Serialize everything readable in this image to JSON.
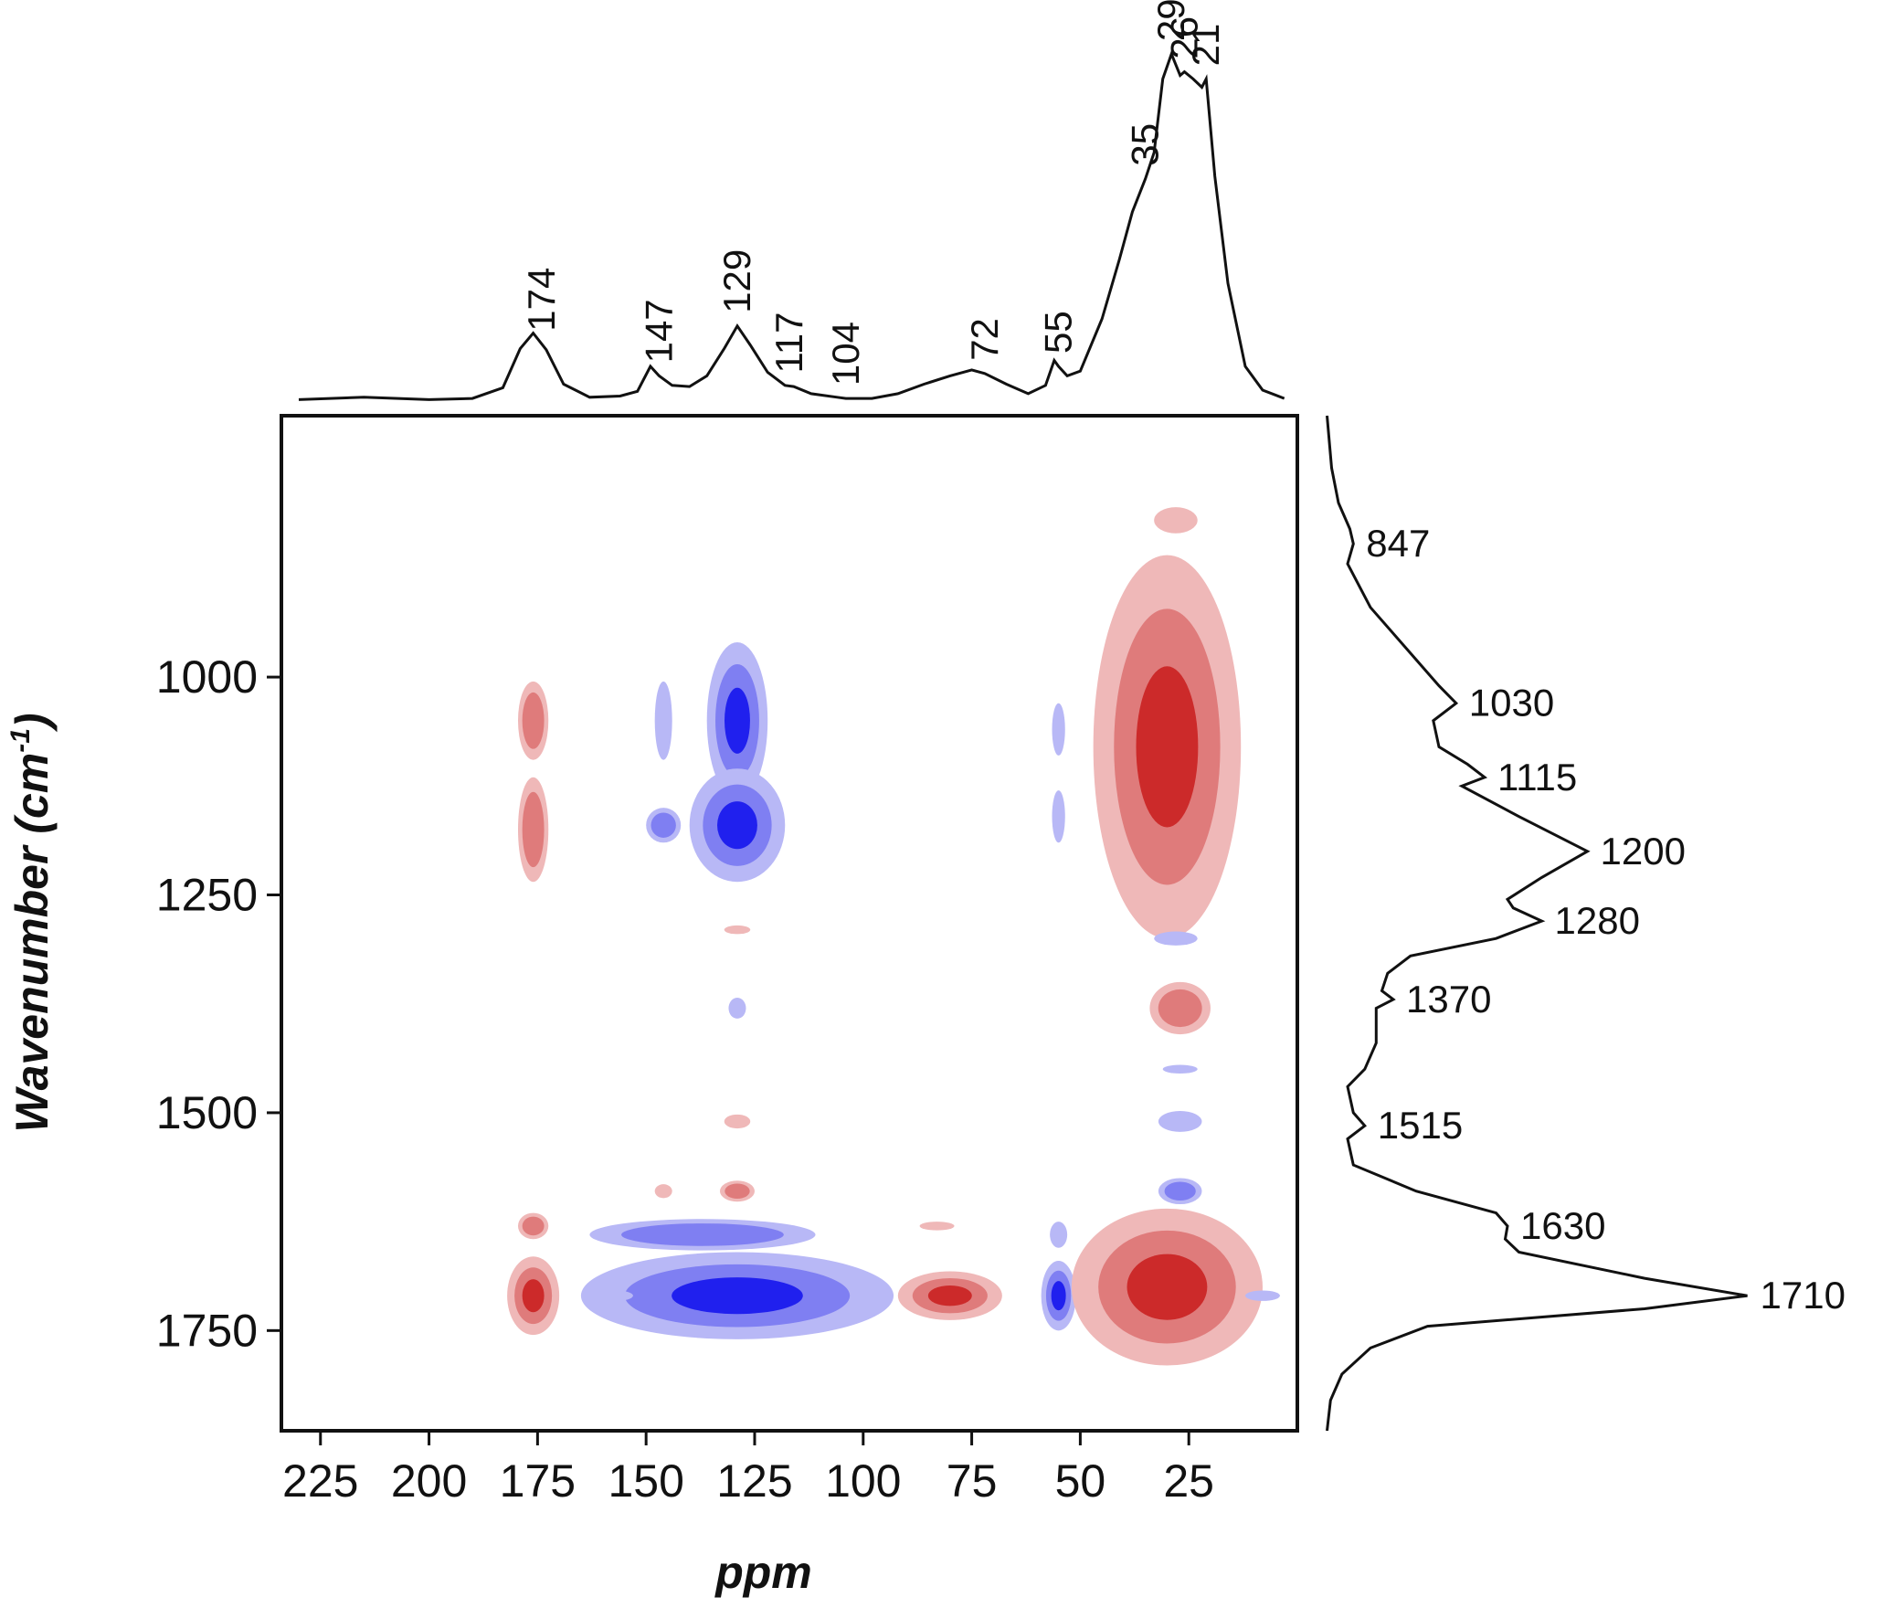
{
  "chart_data": {
    "type": "heatmap",
    "title": "",
    "xlabel": "ppm",
    "ylabel": "Wavenumber (cm",
    "ylabel_superscript": "-1",
    "ylabel_suffix": ")",
    "xlim": [
      234,
      0
    ],
    "ylim": [
      700,
      1865
    ],
    "x_ticks": [
      225,
      200,
      175,
      150,
      125,
      100,
      75,
      50,
      25
    ],
    "y_ticks": [
      1000,
      1250,
      1500,
      1750
    ],
    "x_reversed": true,
    "y_increases_downward": true,
    "colors": {
      "positive_strong": "#cc2a2a",
      "positive_medium": "#df7b7b",
      "positive_weak": "#efb8b8",
      "negative_strong": "#2020ee",
      "negative_medium": "#7f7ff2",
      "negative_weak": "#b8b8f6",
      "line": "#111111"
    },
    "top_spectrum": {
      "name": "13C NMR",
      "points": [
        [
          230,
          2
        ],
        [
          215,
          4
        ],
        [
          200,
          2
        ],
        [
          190,
          3
        ],
        [
          183,
          12
        ],
        [
          179,
          45
        ],
        [
          176,
          58
        ],
        [
          173,
          44
        ],
        [
          169,
          15
        ],
        [
          163,
          4
        ],
        [
          156,
          5
        ],
        [
          152,
          9
        ],
        [
          149,
          30
        ],
        [
          147,
          22
        ],
        [
          144,
          14
        ],
        [
          140,
          13
        ],
        [
          136,
          22
        ],
        [
          132,
          45
        ],
        [
          129,
          64
        ],
        [
          126,
          48
        ],
        [
          122,
          25
        ],
        [
          118,
          14
        ],
        [
          116,
          13
        ],
        [
          112,
          7
        ],
        [
          106,
          4
        ],
        [
          104,
          3
        ],
        [
          98,
          3
        ],
        [
          92,
          7
        ],
        [
          86,
          15
        ],
        [
          80,
          22
        ],
        [
          75,
          27
        ],
        [
          72,
          24
        ],
        [
          67,
          15
        ],
        [
          62,
          7
        ],
        [
          58,
          14
        ],
        [
          56,
          35
        ],
        [
          55,
          30
        ],
        [
          53,
          22
        ],
        [
          50,
          26
        ],
        [
          45,
          70
        ],
        [
          41,
          120
        ],
        [
          38,
          160
        ],
        [
          35,
          188
        ],
        [
          33,
          210
        ],
        [
          31,
          272
        ],
        [
          29,
          293
        ],
        [
          27,
          275
        ],
        [
          26,
          278
        ],
        [
          24,
          272
        ],
        [
          22,
          265
        ],
        [
          21,
          272
        ],
        [
          19,
          190
        ],
        [
          16,
          100
        ],
        [
          12,
          30
        ],
        [
          8,
          10
        ],
        [
          3,
          3
        ]
      ],
      "peak_labels": [
        {
          "x": 174,
          "label": "174"
        },
        {
          "x": 147,
          "label": "147"
        },
        {
          "x": 129,
          "label": "129"
        },
        {
          "x": 117,
          "label": "117"
        },
        {
          "x": 104,
          "label": "104"
        },
        {
          "x": 72,
          "label": "72"
        },
        {
          "x": 55,
          "label": "55"
        },
        {
          "x": 35,
          "label": "35"
        },
        {
          "x": 29,
          "label": "29"
        },
        {
          "x": 26,
          "label": "26"
        },
        {
          "x": 21,
          "label": "21"
        }
      ]
    },
    "side_spectrum": {
      "name": "IR",
      "points": [
        [
          700,
          2
        ],
        [
          760,
          6
        ],
        [
          800,
          12
        ],
        [
          830,
          22
        ],
        [
          847,
          25
        ],
        [
          870,
          20
        ],
        [
          920,
          40
        ],
        [
          980,
          80
        ],
        [
          1010,
          100
        ],
        [
          1030,
          115
        ],
        [
          1050,
          95
        ],
        [
          1080,
          100
        ],
        [
          1100,
          125
        ],
        [
          1115,
          140
        ],
        [
          1125,
          120
        ],
        [
          1160,
          170
        ],
        [
          1200,
          230
        ],
        [
          1230,
          190
        ],
        [
          1255,
          160
        ],
        [
          1265,
          165
        ],
        [
          1280,
          190
        ],
        [
          1300,
          150
        ],
        [
          1320,
          75
        ],
        [
          1340,
          55
        ],
        [
          1360,
          50
        ],
        [
          1370,
          60
        ],
        [
          1380,
          45
        ],
        [
          1420,
          45
        ],
        [
          1450,
          35
        ],
        [
          1470,
          20
        ],
        [
          1500,
          25
        ],
        [
          1515,
          35
        ],
        [
          1530,
          20
        ],
        [
          1560,
          25
        ],
        [
          1590,
          80
        ],
        [
          1615,
          150
        ],
        [
          1630,
          160
        ],
        [
          1645,
          158
        ],
        [
          1660,
          170
        ],
        [
          1690,
          280
        ],
        [
          1710,
          370
        ],
        [
          1725,
          280
        ],
        [
          1745,
          90
        ],
        [
          1770,
          40
        ],
        [
          1800,
          15
        ],
        [
          1830,
          5
        ],
        [
          1865,
          2
        ]
      ],
      "peak_labels": [
        {
          "y": 847,
          "label": "847"
        },
        {
          "y": 1030,
          "label": "1030"
        },
        {
          "y": 1115,
          "label": "1115"
        },
        {
          "y": 1200,
          "label": "1200"
        },
        {
          "y": 1280,
          "label": "1280"
        },
        {
          "y": 1370,
          "label": "1370"
        },
        {
          "y": 1515,
          "label": "1515"
        },
        {
          "y": 1630,
          "label": "1630"
        },
        {
          "y": 1710,
          "label": "1710"
        }
      ]
    },
    "correlation_peaks": [
      {
        "x": 176,
        "y": 1050,
        "sign": "positive",
        "level": 2,
        "dx": 3.5,
        "dy": 45
      },
      {
        "x": 176,
        "y": 1175,
        "sign": "positive",
        "level": 2,
        "dx": 3.5,
        "dy": 60
      },
      {
        "x": 176,
        "y": 1630,
        "sign": "positive",
        "level": 2,
        "dx": 3.5,
        "dy": 15
      },
      {
        "x": 176,
        "y": 1710,
        "sign": "positive",
        "level": 3,
        "dx": 6,
        "dy": 45
      },
      {
        "x": 146,
        "y": 1050,
        "sign": "negative",
        "level": 1,
        "dx": 2,
        "dy": 45
      },
      {
        "x": 146,
        "y": 1170,
        "sign": "negative",
        "level": 2,
        "dx": 4,
        "dy": 20
      },
      {
        "x": 146,
        "y": 1590,
        "sign": "positive",
        "level": 1,
        "dx": 2,
        "dy": 8
      },
      {
        "x": 129,
        "y": 1050,
        "sign": "negative",
        "level": 3,
        "dx": 7,
        "dy": 90
      },
      {
        "x": 129,
        "y": 1170,
        "sign": "negative",
        "level": 3,
        "dx": 11,
        "dy": 65
      },
      {
        "x": 129,
        "y": 1290,
        "sign": "positive",
        "level": 1,
        "dx": 3,
        "dy": 5
      },
      {
        "x": 129,
        "y": 1380,
        "sign": "negative",
        "level": 1,
        "dx": 2,
        "dy": 12
      },
      {
        "x": 129,
        "y": 1510,
        "sign": "positive",
        "level": 1,
        "dx": 3,
        "dy": 8
      },
      {
        "x": 129,
        "y": 1590,
        "sign": "positive",
        "level": 2,
        "dx": 4,
        "dy": 12
      },
      {
        "x": 137,
        "y": 1640,
        "sign": "negative",
        "level": 2,
        "dx": 26,
        "dy": 18
      },
      {
        "x": 129,
        "y": 1710,
        "sign": "negative",
        "level": 3,
        "dx": 36,
        "dy": 50
      },
      {
        "x": 80,
        "y": 1710,
        "sign": "positive",
        "level": 3,
        "dx": 12,
        "dy": 28
      },
      {
        "x": 83,
        "y": 1630,
        "sign": "positive",
        "level": 1,
        "dx": 4,
        "dy": 5
      },
      {
        "x": 55,
        "y": 1060,
        "sign": "negative",
        "level": 1,
        "dx": 1.5,
        "dy": 30
      },
      {
        "x": 55,
        "y": 1160,
        "sign": "negative",
        "level": 1,
        "dx": 1.5,
        "dy": 30
      },
      {
        "x": 55,
        "y": 1640,
        "sign": "negative",
        "level": 1,
        "dx": 2,
        "dy": 15
      },
      {
        "x": 55,
        "y": 1710,
        "sign": "negative",
        "level": 3,
        "dx": 4,
        "dy": 40
      },
      {
        "x": 28,
        "y": 820,
        "sign": "positive",
        "level": 1,
        "dx": 5,
        "dy": 15
      },
      {
        "x": 30,
        "y": 1080,
        "sign": "positive",
        "level": 3,
        "dx": 17,
        "dy": 220
      },
      {
        "x": 28,
        "y": 1300,
        "sign": "negative",
        "level": 1,
        "dx": 5,
        "dy": 8
      },
      {
        "x": 27,
        "y": 1380,
        "sign": "positive",
        "level": 2,
        "dx": 7,
        "dy": 30
      },
      {
        "x": 27,
        "y": 1450,
        "sign": "negative",
        "level": 1,
        "dx": 4,
        "dy": 5
      },
      {
        "x": 27,
        "y": 1510,
        "sign": "negative",
        "level": 1,
        "dx": 5,
        "dy": 12
      },
      {
        "x": 27,
        "y": 1590,
        "sign": "negative",
        "level": 2,
        "dx": 5,
        "dy": 15
      },
      {
        "x": 30,
        "y": 1700,
        "sign": "positive",
        "level": 3,
        "dx": 22,
        "dy": 90
      },
      {
        "x": 8,
        "y": 1710,
        "sign": "negative",
        "level": 1,
        "dx": 4,
        "dy": 6
      },
      {
        "x": 157,
        "y": 1710,
        "sign": "negative",
        "level": 1,
        "dx": 4,
        "dy": 6
      }
    ]
  }
}
